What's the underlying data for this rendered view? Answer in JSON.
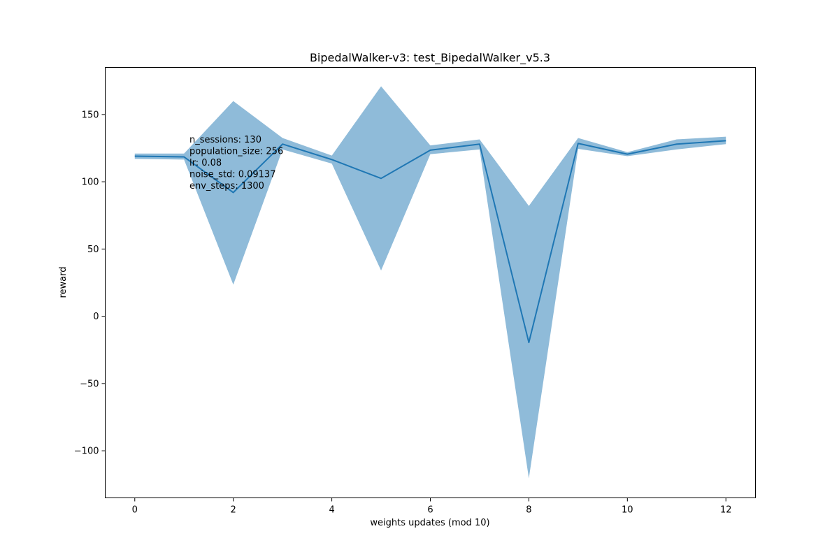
{
  "chart_data": {
    "type": "line",
    "title": "BipedalWalker-v3: test_BipedalWalker_v5.3",
    "xlabel": "weights updates (mod 10)",
    "ylabel": "reward",
    "xlim": [
      -0.6,
      12.6
    ],
    "ylim": [
      -135,
      185
    ],
    "xticks": [
      0,
      2,
      4,
      6,
      8,
      10,
      12
    ],
    "xtick_labels": [
      "0",
      "2",
      "4",
      "6",
      "8",
      "10",
      "12"
    ],
    "yticks": [
      -100,
      -50,
      0,
      50,
      100,
      150
    ],
    "ytick_labels": [
      "−100",
      "−50",
      "0",
      "50",
      "100",
      "150"
    ],
    "grid": false,
    "line_color": "#1f77b4",
    "band_color": "#8fbbd9",
    "series": [
      {
        "x": [
          0,
          1,
          2,
          3,
          4,
          5,
          6,
          7,
          8,
          9,
          10,
          11,
          12
        ],
        "mean": [
          119,
          118.5,
          92,
          128,
          116.5,
          102.5,
          123.5,
          128,
          -19.5,
          128.5,
          120.5,
          128,
          130.5
        ],
        "upper": [
          121,
          121,
          160,
          132.5,
          119.5,
          171,
          127,
          131.5,
          82,
          132.5,
          122,
          131.5,
          133.5
        ],
        "lower": [
          117,
          116.5,
          23.5,
          124,
          113.5,
          34,
          120.5,
          124,
          -120.5,
          124.5,
          119,
          124,
          128
        ]
      }
    ],
    "annotation": [
      "n_sessions: 130",
      "population_size: 256",
      "lr: 0.08",
      "noise_std: 0.09137",
      "env_steps: 1300"
    ]
  }
}
